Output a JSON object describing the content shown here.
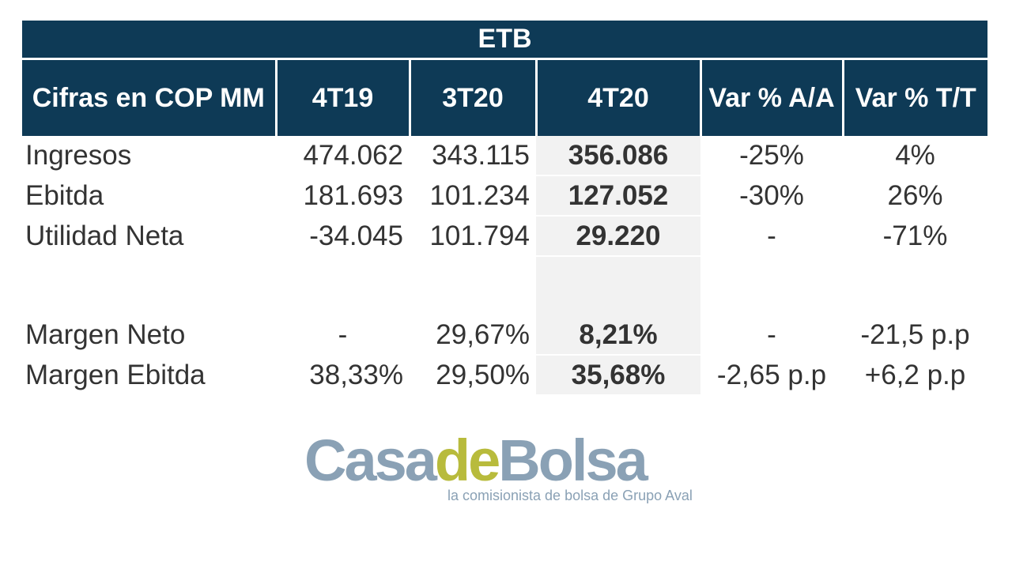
{
  "table": {
    "title": "ETB",
    "headers": {
      "label": "Cifras en COP MM",
      "col1": "4T19",
      "col2": "3T20",
      "col3": "4T20",
      "col4": "Var % A/A",
      "col5": "Var % T/T"
    },
    "rows": [
      {
        "label": "Ingresos",
        "c1": "474.062",
        "c2": "343.115",
        "c3": "356.086",
        "c4": "-25%",
        "c5": "4%"
      },
      {
        "label": "Ebitda",
        "c1": "181.693",
        "c2": "101.234",
        "c3": "127.052",
        "c4": "-30%",
        "c5": "26%"
      },
      {
        "label": "Utilidad Neta",
        "c1": "-34.045",
        "c2": "101.794",
        "c3": "29.220",
        "c4": "-",
        "c5": "-71%"
      },
      {
        "label": "Margen Neto",
        "c1": "-",
        "c2": "29,67%",
        "c3": "8,21%",
        "c4": "-",
        "c5": "-21,5 p.p"
      },
      {
        "label": "Margen Ebitda",
        "c1": "38,33%",
        "c2": "29,50%",
        "c3": "35,68%",
        "c4": "-2,65 p.p",
        "c5": "+6,2 p.p"
      }
    ]
  },
  "logo": {
    "casa": "Casa",
    "de": "de",
    "bolsa": "Bolsa",
    "tagline": "la comisionista de bolsa de Grupo Aval"
  },
  "colors": {
    "header_bg": "#0e3a56",
    "highlight_bg": "#f2f2f2",
    "logo_gray_blue": "#8aa1b5",
    "logo_olive": "#b8bb3c"
  }
}
